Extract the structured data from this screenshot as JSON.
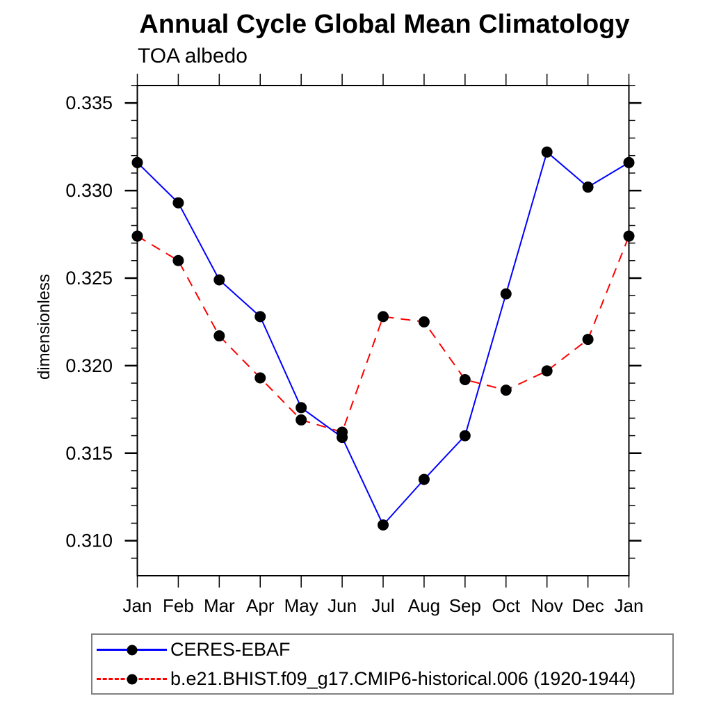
{
  "chart_data": {
    "type": "line",
    "title": "Annual Cycle Global Mean Climatology",
    "subtitle": "TOA albedo",
    "ylabel": "dimensionless",
    "xlabel": "",
    "categories": [
      "Jan",
      "Feb",
      "Mar",
      "Apr",
      "May",
      "Jun",
      "Jul",
      "Aug",
      "Sep",
      "Oct",
      "Nov",
      "Dec",
      "Jan"
    ],
    "ylim": [
      0.308,
      0.336
    ],
    "ytick_major_values": [
      0.31,
      0.315,
      0.32,
      0.325,
      0.33,
      0.335
    ],
    "ytick_major_labels": [
      "0.310",
      "0.315",
      "0.320",
      "0.325",
      "0.330",
      "0.335"
    ],
    "ytick_minor_step": 0.001,
    "grid": false,
    "frame": "box-with-outward-ticks",
    "legend_position": "bottom-left-boxed",
    "series": [
      {
        "name": "CERES-EBAF",
        "color": "#0000ff",
        "line_style": "solid",
        "marker": "filled-circle",
        "marker_color": "#000000",
        "values": [
          0.3316,
          0.3293,
          0.3249,
          0.3228,
          0.3176,
          0.3159,
          0.3109,
          0.3135,
          0.316,
          0.3241,
          0.3322,
          0.3302,
          0.3316
        ]
      },
      {
        "name": "b.e21.BHIST.f09_g17.CMIP6-historical.006 (1920-1944)",
        "color": "#ff0000",
        "line_style": "dashed",
        "marker": "filled-circle",
        "marker_color": "#000000",
        "values": [
          0.3274,
          0.326,
          0.3217,
          0.3193,
          0.3169,
          0.3162,
          0.3228,
          0.3225,
          0.3192,
          0.3186,
          0.3197,
          0.3215,
          0.3274
        ]
      }
    ]
  }
}
